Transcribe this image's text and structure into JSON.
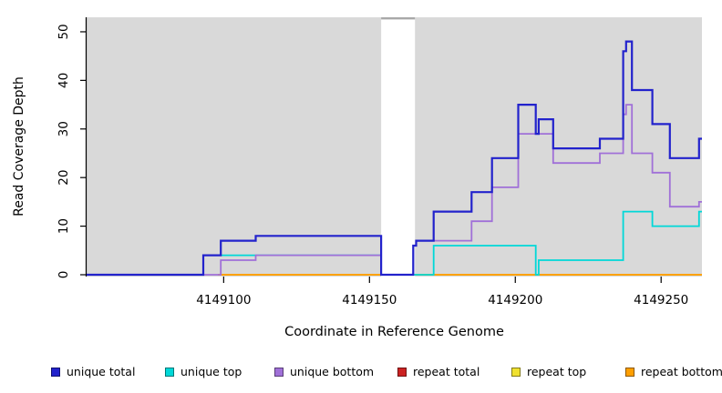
{
  "chart_data": {
    "type": "line",
    "subtype": "step-coverage",
    "title": "",
    "xlabel": "Coordinate in Reference Genome",
    "ylabel": "Read Coverage Depth",
    "xlim": [
      4149053,
      4149264
    ],
    "ylim": [
      0,
      52.8
    ],
    "grid": false,
    "legend_position": "bottom",
    "plot_bg_color": "#d9d9d9",
    "axis_color": "#000000",
    "x_ticks": [
      {
        "value": 4149100,
        "label": "4149100"
      },
      {
        "value": 4149150,
        "label": "4149150"
      },
      {
        "value": 4149200,
        "label": "4149200"
      },
      {
        "value": 4149250,
        "label": "4149250"
      }
    ],
    "y_ticks": [
      {
        "value": 0,
        "label": "0"
      },
      {
        "value": 10,
        "label": "10"
      },
      {
        "value": 20,
        "label": "20"
      },
      {
        "value": 30,
        "label": "30"
      },
      {
        "value": 40,
        "label": "40"
      },
      {
        "value": 50,
        "label": "50"
      }
    ],
    "gap_band": {
      "x_start": 4149154,
      "x_end": 4149165.6,
      "fill": "#ffffff",
      "top_cap_color": "#a8a8a8"
    },
    "series": [
      {
        "name": "unique total",
        "color": "#2222cc",
        "line_width": 2.2,
        "segments": [
          [
            [
              4149053,
              0
            ],
            [
              4149093,
              4
            ],
            [
              4149099,
              7
            ],
            [
              4149111,
              8
            ],
            [
              4149154,
              0
            ],
            [
              4149165,
              6
            ],
            [
              4149166,
              7
            ],
            [
              4149172,
              13
            ],
            [
              4149185,
              17
            ],
            [
              4149192,
              24
            ],
            [
              4149201,
              35
            ],
            [
              4149207,
              29
            ],
            [
              4149208,
              32
            ],
            [
              4149213,
              26
            ],
            [
              4149229,
              28
            ],
            [
              4149237,
              46
            ],
            [
              4149238,
              48
            ],
            [
              4149240,
              38
            ],
            [
              4149247,
              31
            ],
            [
              4149253,
              24
            ],
            [
              4149263,
              28
            ],
            [
              4149264,
              28
            ]
          ]
        ]
      },
      {
        "name": "unique top",
        "color": "#00d8d8",
        "line_width": 1.8,
        "segments": [
          [
            [
              4149053,
              0
            ],
            [
              4149093,
              4
            ],
            [
              4149154,
              0
            ],
            [
              4149172,
              6
            ],
            [
              4149207,
              0
            ],
            [
              4149208,
              3
            ],
            [
              4149237,
              13
            ],
            [
              4149247,
              10
            ],
            [
              4149263,
              13
            ],
            [
              4149264,
              13
            ]
          ]
        ]
      },
      {
        "name": "unique bottom",
        "color": "#a070d8",
        "line_width": 1.8,
        "segments": [
          [
            [
              4149053,
              0
            ],
            [
              4149099,
              3
            ],
            [
              4149111,
              4
            ],
            [
              4149154,
              0
            ],
            [
              4149165,
              6
            ],
            [
              4149166,
              7
            ],
            [
              4149185,
              11
            ],
            [
              4149192,
              18
            ],
            [
              4149201,
              29
            ],
            [
              4149213,
              23
            ],
            [
              4149229,
              25
            ],
            [
              4149237,
              33
            ],
            [
              4149238,
              35
            ],
            [
              4149240,
              25
            ],
            [
              4149247,
              21
            ],
            [
              4149253,
              14
            ],
            [
              4149263,
              15
            ],
            [
              4149264,
              15
            ]
          ]
        ]
      },
      {
        "name": "repeat total",
        "color": "#cc2222",
        "line_width": 1.8,
        "segments": [
          [
            [
              4149098,
              0
            ],
            [
              4149154,
              0
            ]
          ],
          [
            [
              4149165.6,
              0
            ],
            [
              4149264,
              0
            ]
          ]
        ]
      },
      {
        "name": "repeat top",
        "color": "#f0e130",
        "line_width": 1.8,
        "segments": [
          [
            [
              4149098,
              0
            ],
            [
              4149154,
              0
            ]
          ],
          [
            [
              4149165.6,
              0
            ],
            [
              4149264,
              0
            ]
          ]
        ]
      },
      {
        "name": "repeat bottom",
        "color": "#ff9f00",
        "line_width": 1.8,
        "segments": [
          [
            [
              4149098,
              0
            ],
            [
              4149154,
              0
            ]
          ],
          [
            [
              4149165.6,
              0
            ],
            [
              4149264,
              0
            ]
          ]
        ]
      }
    ],
    "draw_order": [
      3,
      4,
      5,
      1,
      2,
      0
    ]
  }
}
